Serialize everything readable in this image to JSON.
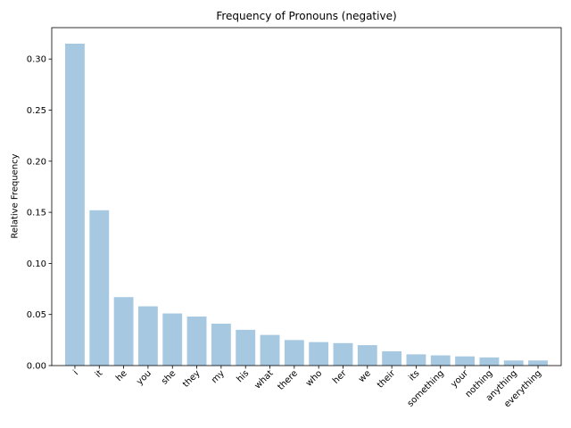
{
  "chart_data": {
    "type": "bar",
    "title": "Frequency of Pronouns (negative)",
    "xlabel": "",
    "ylabel": "Relative Frequency",
    "categories": [
      "i",
      "it",
      "he",
      "you",
      "she",
      "they",
      "my",
      "his",
      "what",
      "there",
      "who",
      "her",
      "we",
      "their",
      "its",
      "something",
      "your",
      "nothing",
      "anything",
      "everything"
    ],
    "values": [
      0.315,
      0.152,
      0.067,
      0.058,
      0.051,
      0.048,
      0.041,
      0.035,
      0.03,
      0.025,
      0.023,
      0.022,
      0.02,
      0.014,
      0.011,
      0.01,
      0.009,
      0.008,
      0.005,
      0.005
    ],
    "ylim": [
      0,
      0.3307
    ],
    "yticks": [
      0.0,
      0.05,
      0.1,
      0.15,
      0.2,
      0.25,
      0.3
    ],
    "ytick_labels": [
      "0.00",
      "0.05",
      "0.10",
      "0.15",
      "0.20",
      "0.25",
      "0.30"
    ],
    "bar_color": "#a6c9e1",
    "grid": false,
    "legend": "none"
  }
}
